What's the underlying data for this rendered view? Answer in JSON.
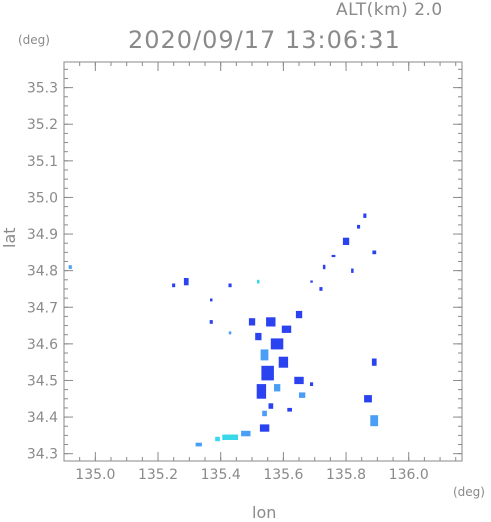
{
  "header": {
    "altitude": "ALT(km) 2.0",
    "timestamp": "2020/09/17 13:06:31"
  },
  "chart_data": {
    "type": "heatmap",
    "title": "2020/09/17 13:06:31",
    "subtitle": "ALT(km) 2.0",
    "xlabel": "lon",
    "ylabel": "lat",
    "x_unit": "(deg)",
    "y_unit": "(deg)",
    "xlim": [
      134.9,
      136.17
    ],
    "ylim": [
      34.28,
      35.37
    ],
    "x_ticks": [
      135.0,
      135.2,
      135.4,
      135.6,
      135.8,
      136.0
    ],
    "x_tick_labels": [
      "135.0",
      "135.2",
      "135.4",
      "135.6",
      "135.8",
      "136.0"
    ],
    "y_ticks": [
      34.3,
      34.4,
      34.5,
      34.6,
      34.7,
      34.8,
      34.9,
      35.0,
      35.1,
      35.2,
      35.3
    ],
    "y_tick_labels": [
      "34.3",
      "34.4",
      "34.5",
      "34.6",
      "34.7",
      "34.8",
      "34.9",
      "35.0",
      "35.1",
      "35.2",
      "35.3"
    ],
    "grid": false,
    "colors": {
      "weak": "#4a9ef5",
      "moderate": "#2a42f0",
      "light": "#38d8e8",
      "axis": "#8a8a8a"
    },
    "echoes": [
      {
        "lon": 134.92,
        "lat": 34.81,
        "w": 0.01,
        "h": 0.01,
        "level": "weak"
      },
      {
        "lon": 135.25,
        "lat": 34.76,
        "w": 0.01,
        "h": 0.01,
        "level": "moderate"
      },
      {
        "lon": 135.29,
        "lat": 34.77,
        "w": 0.015,
        "h": 0.02,
        "level": "moderate"
      },
      {
        "lon": 135.43,
        "lat": 34.76,
        "w": 0.01,
        "h": 0.01,
        "level": "moderate"
      },
      {
        "lon": 135.37,
        "lat": 34.72,
        "w": 0.008,
        "h": 0.008,
        "level": "moderate"
      },
      {
        "lon": 135.52,
        "lat": 34.77,
        "w": 0.008,
        "h": 0.01,
        "level": "light"
      },
      {
        "lon": 135.86,
        "lat": 34.95,
        "w": 0.01,
        "h": 0.012,
        "level": "moderate"
      },
      {
        "lon": 135.84,
        "lat": 34.92,
        "w": 0.01,
        "h": 0.01,
        "level": "moderate"
      },
      {
        "lon": 135.8,
        "lat": 34.88,
        "w": 0.02,
        "h": 0.02,
        "level": "moderate"
      },
      {
        "lon": 135.76,
        "lat": 34.84,
        "w": 0.012,
        "h": 0.006,
        "level": "moderate"
      },
      {
        "lon": 135.89,
        "lat": 34.85,
        "w": 0.012,
        "h": 0.01,
        "level": "moderate"
      },
      {
        "lon": 135.73,
        "lat": 34.81,
        "w": 0.008,
        "h": 0.012,
        "level": "moderate"
      },
      {
        "lon": 135.82,
        "lat": 34.8,
        "w": 0.008,
        "h": 0.012,
        "level": "moderate"
      },
      {
        "lon": 135.69,
        "lat": 34.77,
        "w": 0.008,
        "h": 0.006,
        "level": "moderate"
      },
      {
        "lon": 135.72,
        "lat": 34.75,
        "w": 0.01,
        "h": 0.01,
        "level": "moderate"
      },
      {
        "lon": 135.65,
        "lat": 34.68,
        "w": 0.02,
        "h": 0.02,
        "level": "moderate"
      },
      {
        "lon": 135.5,
        "lat": 34.66,
        "w": 0.02,
        "h": 0.02,
        "level": "moderate"
      },
      {
        "lon": 135.56,
        "lat": 34.66,
        "w": 0.03,
        "h": 0.025,
        "level": "moderate"
      },
      {
        "lon": 135.61,
        "lat": 34.64,
        "w": 0.03,
        "h": 0.02,
        "level": "moderate"
      },
      {
        "lon": 135.52,
        "lat": 34.62,
        "w": 0.02,
        "h": 0.02,
        "level": "moderate"
      },
      {
        "lon": 135.58,
        "lat": 34.6,
        "w": 0.04,
        "h": 0.03,
        "level": "moderate"
      },
      {
        "lon": 135.54,
        "lat": 34.57,
        "w": 0.025,
        "h": 0.03,
        "level": "weak"
      },
      {
        "lon": 135.6,
        "lat": 34.55,
        "w": 0.03,
        "h": 0.03,
        "level": "moderate"
      },
      {
        "lon": 135.55,
        "lat": 34.52,
        "w": 0.04,
        "h": 0.04,
        "level": "moderate"
      },
      {
        "lon": 135.53,
        "lat": 34.47,
        "w": 0.03,
        "h": 0.04,
        "level": "moderate"
      },
      {
        "lon": 135.58,
        "lat": 34.48,
        "w": 0.02,
        "h": 0.02,
        "level": "weak"
      },
      {
        "lon": 135.65,
        "lat": 34.5,
        "w": 0.03,
        "h": 0.02,
        "level": "moderate"
      },
      {
        "lon": 135.66,
        "lat": 34.46,
        "w": 0.02,
        "h": 0.015,
        "level": "weak"
      },
      {
        "lon": 135.69,
        "lat": 34.49,
        "w": 0.01,
        "h": 0.01,
        "level": "moderate"
      },
      {
        "lon": 135.43,
        "lat": 34.63,
        "w": 0.008,
        "h": 0.008,
        "level": "weak"
      },
      {
        "lon": 135.37,
        "lat": 34.66,
        "w": 0.01,
        "h": 0.01,
        "level": "moderate"
      },
      {
        "lon": 135.56,
        "lat": 34.43,
        "w": 0.015,
        "h": 0.015,
        "level": "moderate"
      },
      {
        "lon": 135.54,
        "lat": 34.41,
        "w": 0.015,
        "h": 0.015,
        "level": "weak"
      },
      {
        "lon": 135.62,
        "lat": 34.42,
        "w": 0.015,
        "h": 0.01,
        "level": "moderate"
      },
      {
        "lon": 135.89,
        "lat": 34.55,
        "w": 0.015,
        "h": 0.02,
        "level": "moderate"
      },
      {
        "lon": 135.87,
        "lat": 34.45,
        "w": 0.025,
        "h": 0.02,
        "level": "moderate"
      },
      {
        "lon": 135.89,
        "lat": 34.39,
        "w": 0.025,
        "h": 0.03,
        "level": "weak"
      },
      {
        "lon": 135.54,
        "lat": 34.37,
        "w": 0.03,
        "h": 0.02,
        "level": "moderate"
      },
      {
        "lon": 135.48,
        "lat": 34.355,
        "w": 0.03,
        "h": 0.015,
        "level": "weak"
      },
      {
        "lon": 135.43,
        "lat": 34.345,
        "w": 0.05,
        "h": 0.015,
        "level": "light"
      },
      {
        "lon": 135.39,
        "lat": 34.34,
        "w": 0.015,
        "h": 0.012,
        "level": "light"
      },
      {
        "lon": 135.33,
        "lat": 34.325,
        "w": 0.02,
        "h": 0.01,
        "level": "weak"
      }
    ]
  }
}
